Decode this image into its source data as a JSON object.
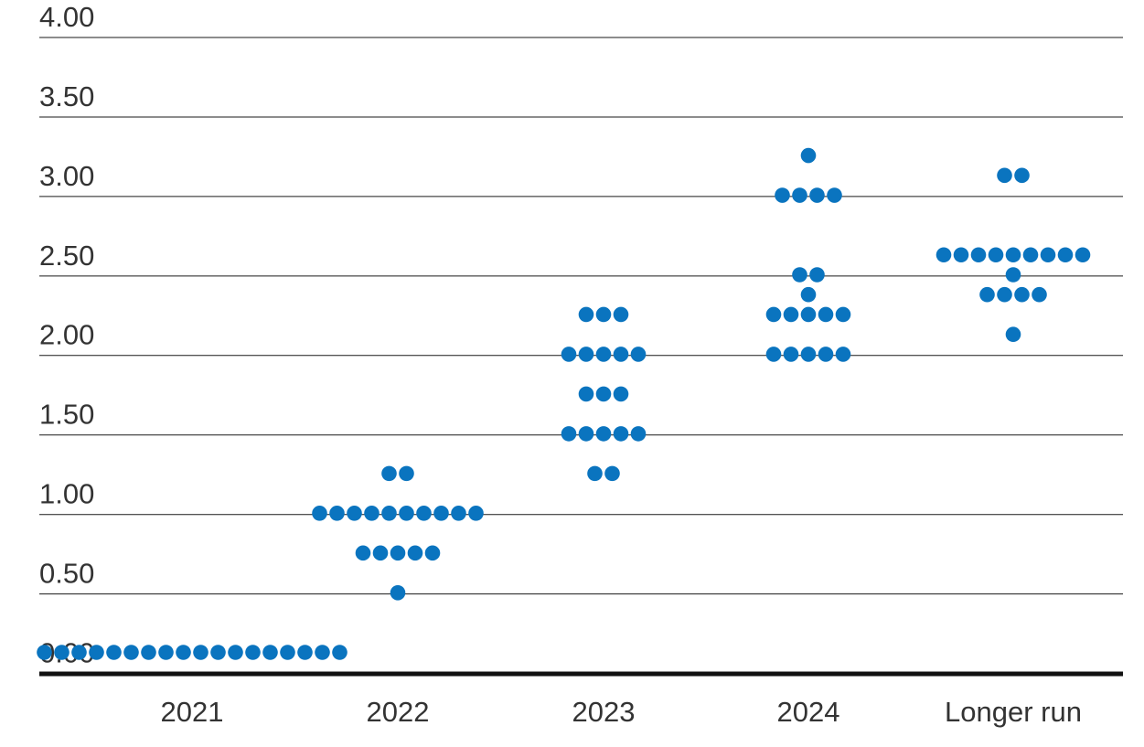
{
  "chart_data": {
    "type": "scatter",
    "title": "",
    "xlabel": "",
    "ylabel": "",
    "ylim": [
      0,
      4
    ],
    "grid": true,
    "y_ticks": [
      "0.00",
      "0.50",
      "1.00",
      "1.50",
      "2.00",
      "2.50",
      "3.00",
      "3.50",
      "4.00"
    ],
    "categories": [
      "2021",
      "2022",
      "2023",
      "2024",
      "Longer run"
    ],
    "dot_color": "#0a74bf",
    "points": [
      {
        "category": "2021",
        "rows": [
          {
            "y": 0.0,
            "count": 18
          }
        ]
      },
      {
        "category": "2022",
        "rows": [
          {
            "y": 1.125,
            "count": 2
          },
          {
            "y": 0.875,
            "count": 10
          },
          {
            "y": 0.625,
            "count": 5
          },
          {
            "y": 0.375,
            "count": 1
          }
        ]
      },
      {
        "category": "2023",
        "rows": [
          {
            "y": 2.125,
            "count": 3
          },
          {
            "y": 1.875,
            "count": 5
          },
          {
            "y": 1.625,
            "count": 3
          },
          {
            "y": 1.375,
            "count": 5
          },
          {
            "y": 1.125,
            "count": 2
          }
        ]
      },
      {
        "category": "2024",
        "rows": [
          {
            "y": 3.125,
            "count": 1
          },
          {
            "y": 2.875,
            "count": 4
          },
          {
            "y": 2.375,
            "count": 2
          },
          {
            "y": 2.25,
            "count": 1
          },
          {
            "y": 2.125,
            "count": 5
          },
          {
            "y": 1.875,
            "count": 5
          }
        ]
      },
      {
        "category": "Longer run",
        "rows": [
          {
            "y": 3.0,
            "count": 2
          },
          {
            "y": 2.5,
            "count": 9
          },
          {
            "y": 2.375,
            "count": 1
          },
          {
            "y": 2.25,
            "count": 4
          },
          {
            "y": 2.0,
            "count": 1
          }
        ]
      }
    ]
  }
}
